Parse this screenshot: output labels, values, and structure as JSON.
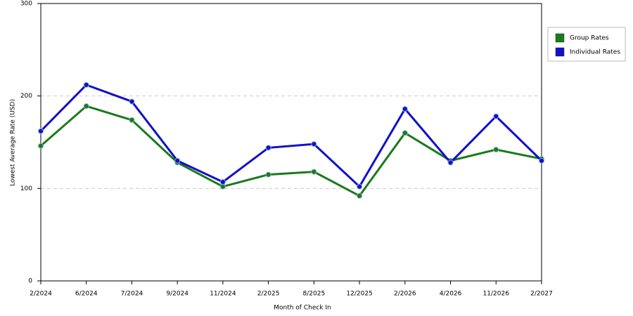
{
  "chart_data": {
    "type": "line",
    "x_label": "Month of Check In",
    "y_label": "Lowest Average Rate (USD)",
    "categories": [
      "2/2024",
      "6/2024",
      "7/2024",
      "9/2024",
      "11/2024",
      "2/2025",
      "8/2025",
      "12/2025",
      "2/2026",
      "4/2026",
      "11/2026",
      "2/2027"
    ],
    "series": [
      {
        "name": "Group Rates",
        "color": "#1a7a1a",
        "values": [
          146,
          189,
          174,
          128,
          102,
          115,
          118,
          92,
          160,
          130,
          142,
          132
        ]
      },
      {
        "name": "Individual Rates",
        "color": "#1010cc",
        "values": [
          162,
          212,
          194,
          130,
          107,
          144,
          148,
          102,
          186,
          128,
          178,
          130
        ]
      }
    ],
    "ylim": [
      0,
      300
    ],
    "yticks": [
      0,
      100,
      200,
      300
    ],
    "grid": true,
    "legend": "top-right"
  }
}
